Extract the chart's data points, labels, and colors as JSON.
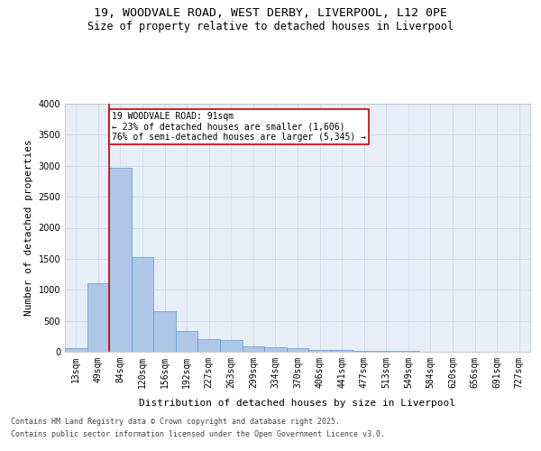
{
  "title_line1": "19, WOODVALE ROAD, WEST DERBY, LIVERPOOL, L12 0PE",
  "title_line2": "Size of property relative to detached houses in Liverpool",
  "xlabel": "Distribution of detached houses by size in Liverpool",
  "ylabel": "Number of detached properties",
  "bar_labels": [
    "13sqm",
    "49sqm",
    "84sqm",
    "120sqm",
    "156sqm",
    "192sqm",
    "227sqm",
    "263sqm",
    "299sqm",
    "334sqm",
    "370sqm",
    "406sqm",
    "441sqm",
    "477sqm",
    "513sqm",
    "549sqm",
    "584sqm",
    "620sqm",
    "656sqm",
    "691sqm",
    "727sqm"
  ],
  "bar_values": [
    55,
    1100,
    2960,
    1530,
    650,
    330,
    200,
    185,
    90,
    75,
    55,
    35,
    25,
    18,
    10,
    8,
    6,
    5,
    4,
    3,
    2
  ],
  "bar_color": "#aec6e8",
  "bar_edgecolor": "#5b9bd5",
  "annotation_text_line1": "19 WOODVALE ROAD: 91sqm",
  "annotation_text_line2": "← 23% of detached houses are smaller (1,606)",
  "annotation_text_line3": "76% of semi-detached houses are larger (5,345) →",
  "annotation_box_color": "#cc0000",
  "vline_color": "#cc0000",
  "ylim": [
    0,
    4000
  ],
  "yticks": [
    0,
    500,
    1000,
    1500,
    2000,
    2500,
    3000,
    3500,
    4000
  ],
  "grid_color": "#d0d8e8",
  "bg_color": "#e8eef7",
  "footer_line1": "Contains HM Land Registry data © Crown copyright and database right 2025.",
  "footer_line2": "Contains public sector information licensed under the Open Government Licence v3.0.",
  "title_fontsize": 9.5,
  "subtitle_fontsize": 8.5,
  "axis_label_fontsize": 8,
  "annotation_fontsize": 7,
  "tick_fontsize": 7,
  "footer_fontsize": 6,
  "ylabel_fontsize": 8
}
